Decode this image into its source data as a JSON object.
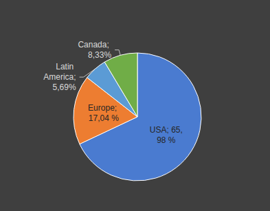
{
  "chart_data": {
    "type": "pie",
    "categories": [
      "USA",
      "Europe",
      "Latin America",
      "Canada"
    ],
    "values": [
      65.98,
      17.04,
      5.69,
      8.33
    ],
    "value_labels": [
      "USA; 65,98 %",
      "Europe; 17,04 %",
      "Latin America; 5,69%",
      "Canada; 8,33%"
    ],
    "colors": [
      "#4a7bd0",
      "#ed7d31",
      "#5b9bd5",
      "#70ad47"
    ],
    "data_labels": true
  }
}
